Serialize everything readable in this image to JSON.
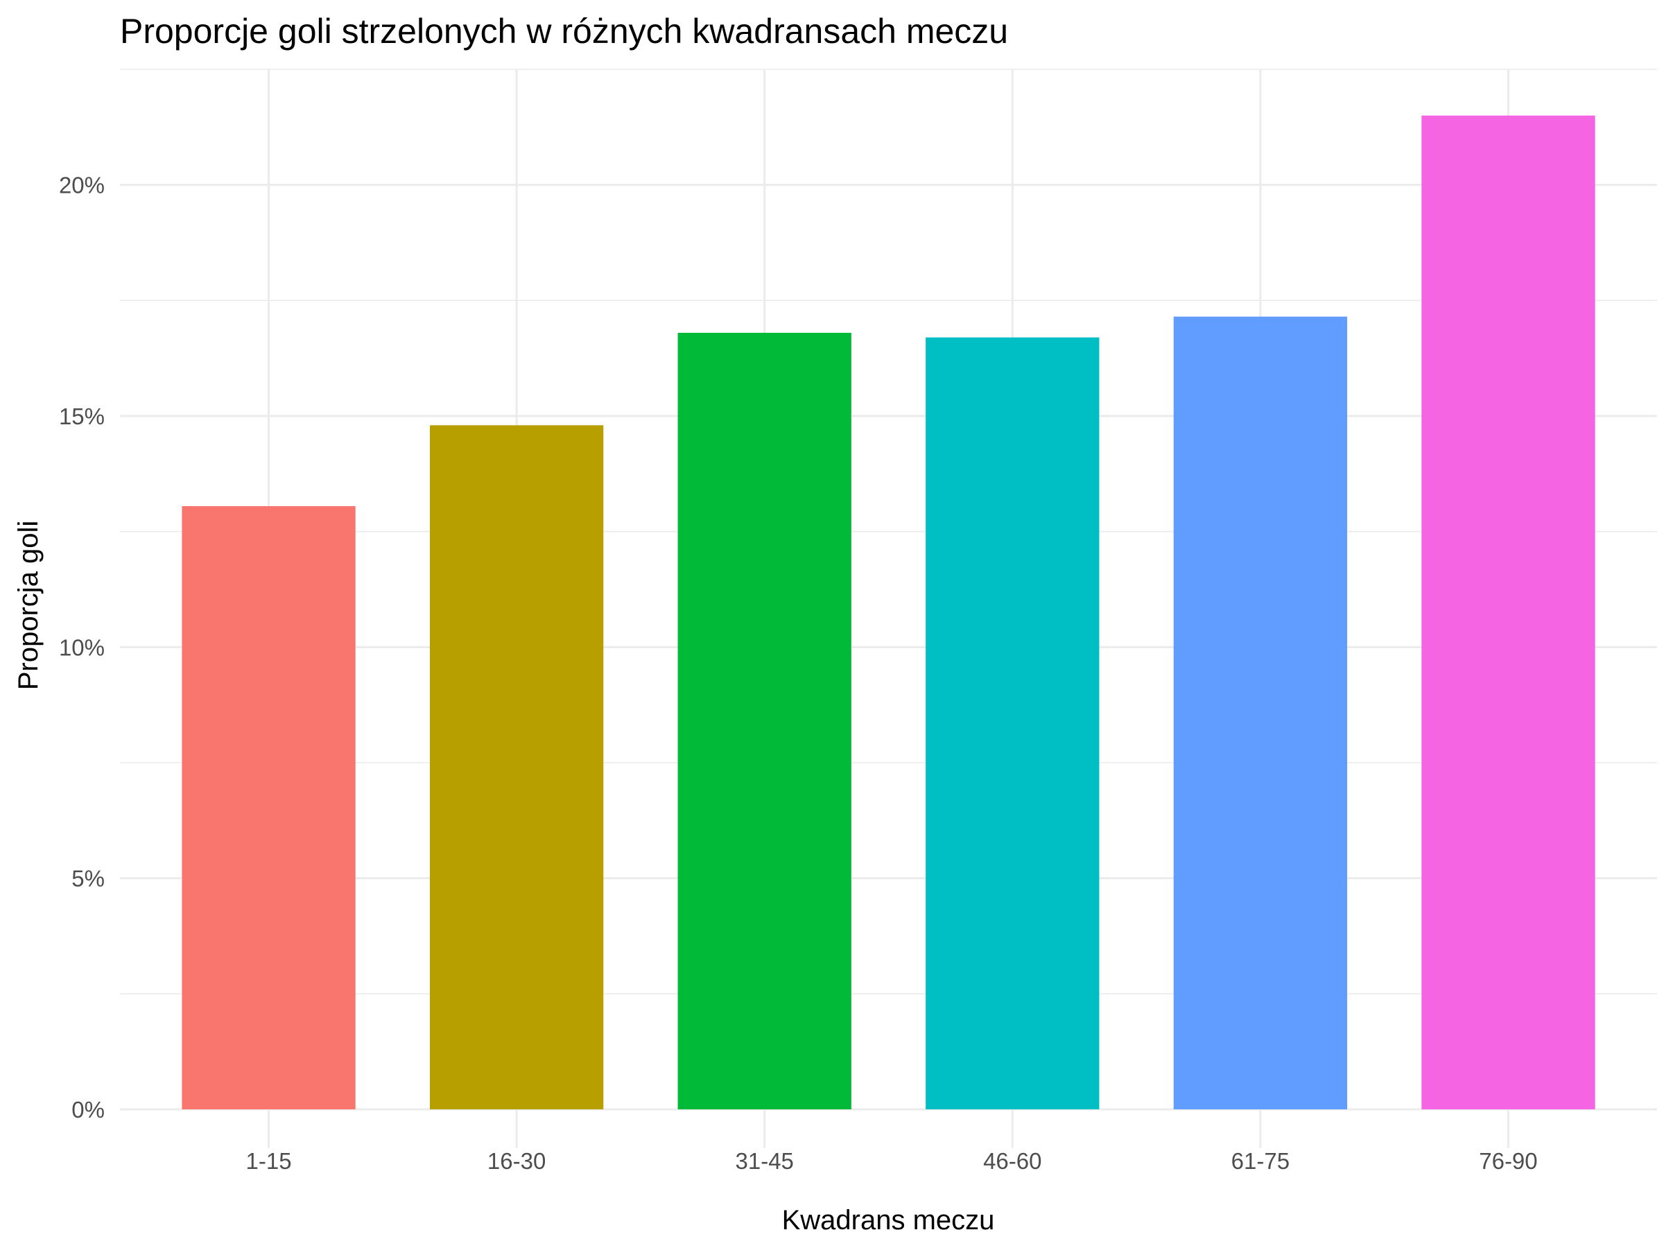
{
  "chart_data": {
    "type": "bar",
    "title": "Proporcje goli strzelonych w różnych kwadransach meczu",
    "xlabel": "Kwadrans meczu",
    "ylabel": "Proporcja goli",
    "categories": [
      "1-15",
      "16-30",
      "31-45",
      "46-60",
      "61-75",
      "76-90"
    ],
    "values": [
      0.1305,
      0.148,
      0.168,
      0.167,
      0.1715,
      0.215
    ],
    "colors": [
      "#F8766D",
      "#B79F00",
      "#00BA38",
      "#00BFC4",
      "#619CFF",
      "#F564E3"
    ],
    "ylim": [
      0,
      0.225
    ],
    "yticks": [
      0,
      0.05,
      0.1,
      0.15,
      0.2
    ],
    "ytick_labels": [
      "0%",
      "5%",
      "10%",
      "15%",
      "20%"
    ],
    "grid": true,
    "legend": "none"
  }
}
